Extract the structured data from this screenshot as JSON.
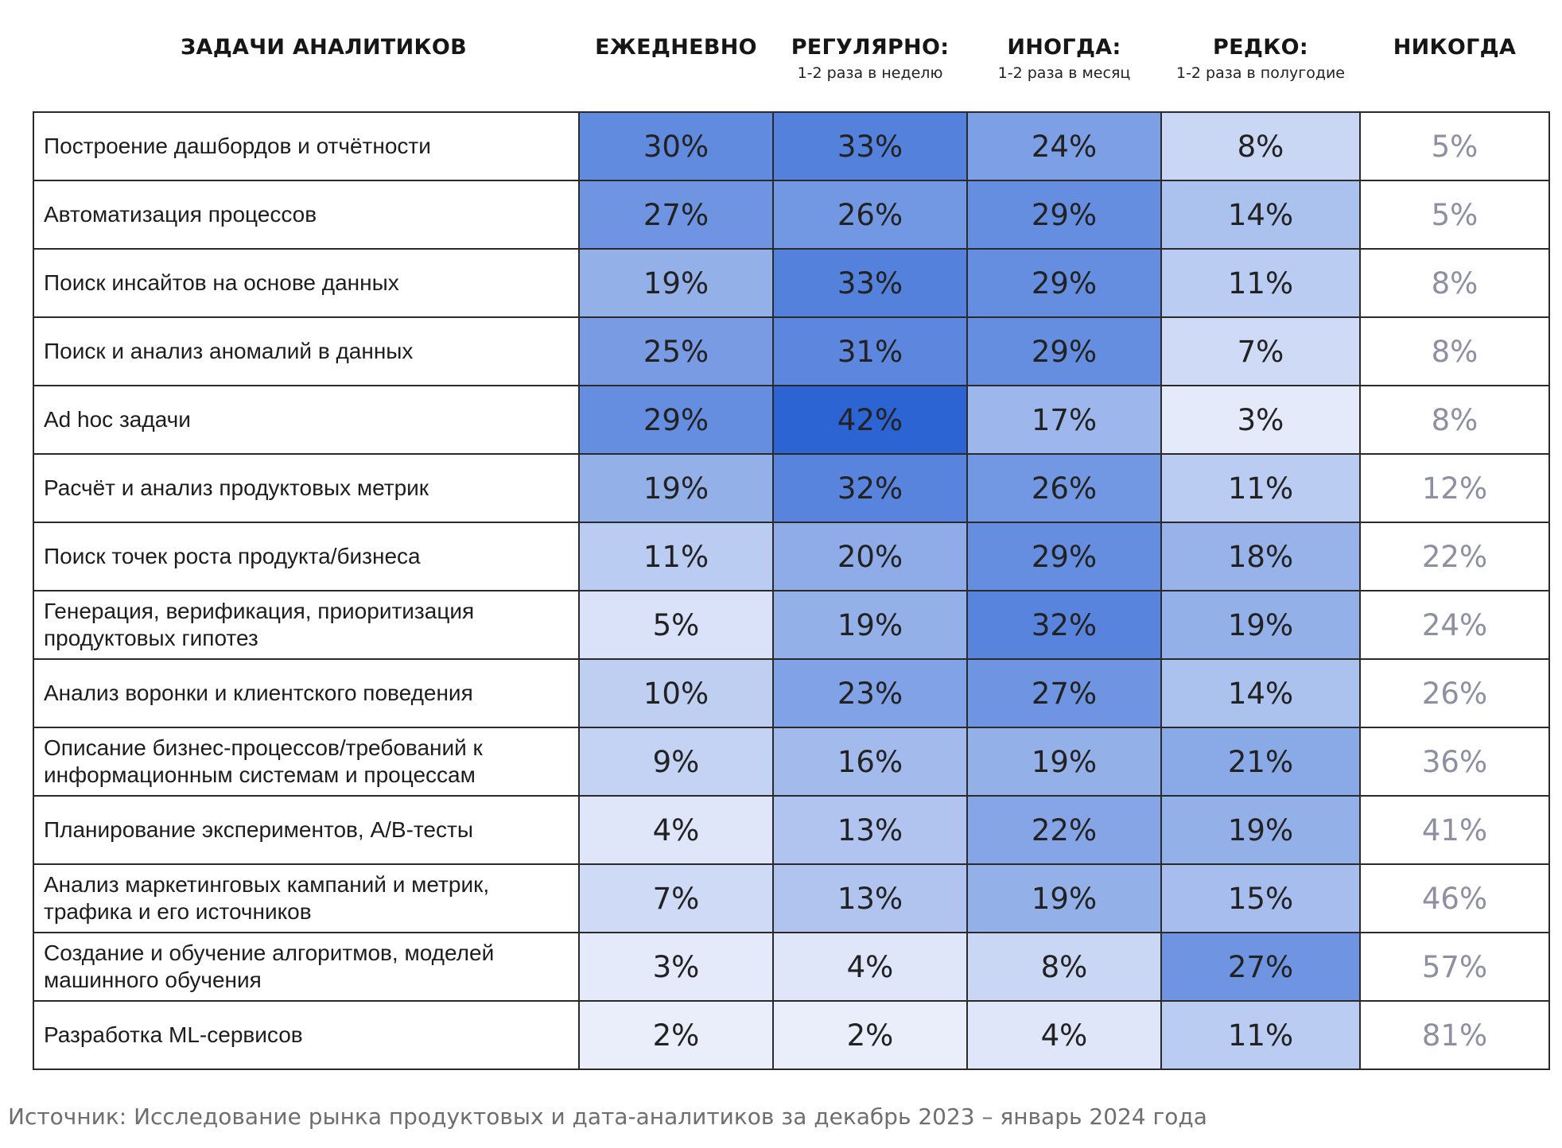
{
  "chart_data": {
    "type": "heatmap",
    "row_header": "ЗАДАЧИ АНАЛИТИКОВ",
    "columns": [
      {
        "title": "ЕЖЕДНЕВНО",
        "subtitle": ""
      },
      {
        "title": "РЕГУЛЯРНО:",
        "subtitle": "1-2 раза в неделю"
      },
      {
        "title": "ИНОГДА:",
        "subtitle": "1-2 раза в месяц"
      },
      {
        "title": "РЕДКО:",
        "subtitle": "1-2 раза в полугодие"
      },
      {
        "title": "НИКОГДА",
        "subtitle": ""
      }
    ],
    "rows": [
      {
        "task": "Построение дашбордов и отчётности",
        "values": [
          30,
          33,
          24,
          8,
          5
        ]
      },
      {
        "task": "Автоматизация процессов",
        "values": [
          27,
          26,
          29,
          14,
          5
        ]
      },
      {
        "task": "Поиск инсайтов на основе данных",
        "values": [
          19,
          33,
          29,
          11,
          8
        ]
      },
      {
        "task": "Поиск и анализ аномалий в данных",
        "values": [
          25,
          31,
          29,
          7,
          8
        ]
      },
      {
        "task": "Ad hoc задачи",
        "values": [
          29,
          42,
          17,
          3,
          8
        ]
      },
      {
        "task": "Расчёт и анализ продуктовых метрик",
        "values": [
          19,
          32,
          26,
          11,
          12
        ]
      },
      {
        "task": "Поиск точек роста продукта/бизнеса",
        "values": [
          11,
          20,
          29,
          18,
          22
        ]
      },
      {
        "task": "Генерация, верификация, приоритизация продуктовых гипотез",
        "values": [
          5,
          19,
          32,
          19,
          24
        ]
      },
      {
        "task": "Анализ воронки и клиентского поведения",
        "values": [
          10,
          23,
          27,
          14,
          26
        ]
      },
      {
        "task": "Описание бизнес-процессов/требований к информационным системам и процессам",
        "values": [
          9,
          16,
          19,
          21,
          36
        ]
      },
      {
        "task": "Планирование экспериментов, A/B-тесты",
        "values": [
          4,
          13,
          22,
          19,
          41
        ]
      },
      {
        "task": "Анализ маркетинговых кампаний и метрик, трафика и его источников",
        "values": [
          7,
          13,
          19,
          15,
          46
        ]
      },
      {
        "task": "Создание и обучение алгоритмов, моделей машинного обучения",
        "values": [
          3,
          4,
          8,
          27,
          57
        ]
      },
      {
        "task": "Разработка ML-сервисов",
        "values": [
          2,
          2,
          4,
          11,
          81
        ]
      }
    ],
    "value_suffix": "%",
    "colors": {
      "low": "#f7f8fe",
      "high": "#2c64d4",
      "never_text": "#8f8fa3",
      "border": "#2a2a2a"
    }
  },
  "source": "Источник: Исследование рынка продуктовых и дата-аналитиков за декабрь 2023 – январь 2024 года"
}
